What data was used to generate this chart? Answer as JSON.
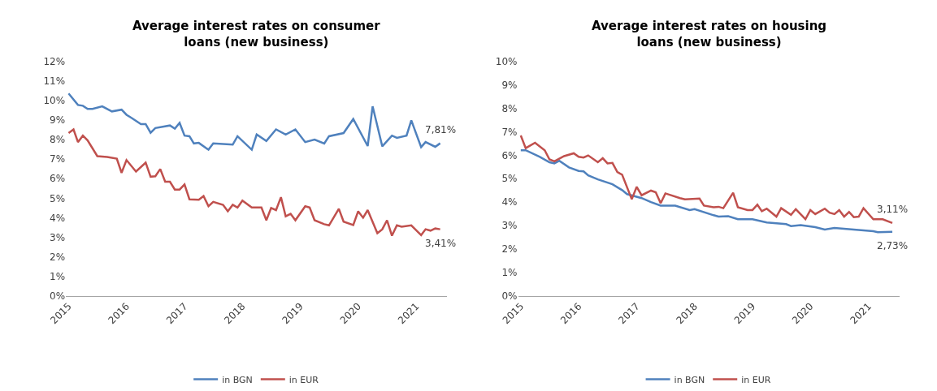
{
  "chart_data": [
    {
      "type": "line",
      "title": "Average interest rates on consumer loans (new business)",
      "xlim": [
        "2014-12-15",
        "2021-07-15"
      ],
      "xticks": [
        "2015",
        "2016",
        "2017",
        "2018",
        "2019",
        "2020",
        "2021"
      ],
      "ylim": [
        0,
        12
      ],
      "yticks": [
        {
          "value": 0,
          "label": "0%"
        },
        {
          "value": 1,
          "label": "1%"
        },
        {
          "value": 2,
          "label": "2%"
        },
        {
          "value": 3,
          "label": "3%"
        },
        {
          "value": 4,
          "label": "4%"
        },
        {
          "value": 5,
          "label": "5%"
        },
        {
          "value": 6,
          "label": "6%"
        },
        {
          "value": 7,
          "label": "7%"
        },
        {
          "value": 8,
          "label": "8%"
        },
        {
          "value": 9,
          "label": "9%"
        },
        {
          "value": 10,
          "label": "10%"
        },
        {
          "value": 11,
          "label": "11%"
        },
        {
          "value": 12,
          "label": "12%"
        }
      ],
      "legend": "bottom",
      "marker": "none",
      "line_style": "solid",
      "series": [
        {
          "name": "in BGN",
          "color": "#4f81bd",
          "x": [
            "2015-01",
            "2015-03",
            "2015-04",
            "2015-05",
            "2015-06",
            "2015-08",
            "2015-10",
            "2015-12",
            "2016-01",
            "2016-02",
            "2016-04",
            "2016-05",
            "2016-06",
            "2016-07",
            "2016-10",
            "2016-11",
            "2016-12",
            "2017-01",
            "2017-02",
            "2017-03",
            "2017-04",
            "2017-06",
            "2017-07",
            "2017-11",
            "2017-12",
            "2018-03",
            "2018-04",
            "2018-06",
            "2018-08",
            "2018-10",
            "2018-12",
            "2019-02",
            "2019-04",
            "2019-06",
            "2019-07",
            "2019-10",
            "2019-12",
            "2020-03",
            "2020-04",
            "2020-06",
            "2020-08",
            "2020-09",
            "2020-11",
            "2020-12",
            "2021-02",
            "2021-03",
            "2021-05",
            "2021-06"
          ],
          "values": [
            10.36,
            9.77,
            9.73,
            9.57,
            9.57,
            9.7,
            9.44,
            9.53,
            9.27,
            9.11,
            8.79,
            8.79,
            8.35,
            8.59,
            8.72,
            8.56,
            8.85,
            8.2,
            8.17,
            7.8,
            7.83,
            7.48,
            7.8,
            7.74,
            8.17,
            7.48,
            8.26,
            7.93,
            8.52,
            8.26,
            8.52,
            7.87,
            8.0,
            7.8,
            8.17,
            8.33,
            9.05,
            7.67,
            9.7,
            7.65,
            8.2,
            8.09,
            8.2,
            8.98,
            7.61,
            7.87,
            7.63,
            7.81
          ]
        },
        {
          "name": "in EUR",
          "color": "#c0504d",
          "x": [
            "2015-01",
            "2015-02",
            "2015-03",
            "2015-04",
            "2015-05",
            "2015-07",
            "2015-09",
            "2015-11",
            "2015-12",
            "2016-01",
            "2016-03",
            "2016-05",
            "2016-06",
            "2016-07",
            "2016-08",
            "2016-09",
            "2016-10",
            "2016-11",
            "2016-12",
            "2017-01",
            "2017-02",
            "2017-04",
            "2017-05",
            "2017-06",
            "2017-07",
            "2017-09",
            "2017-10",
            "2017-11",
            "2017-12",
            "2018-01",
            "2018-03",
            "2018-05",
            "2018-06",
            "2018-07",
            "2018-08",
            "2018-09",
            "2018-10",
            "2018-11",
            "2018-12",
            "2019-02",
            "2019-03",
            "2019-04",
            "2019-06",
            "2019-07",
            "2019-09",
            "2019-10",
            "2019-12",
            "2020-01",
            "2020-02",
            "2020-03",
            "2020-05",
            "2020-06",
            "2020-07",
            "2020-08",
            "2020-09",
            "2020-10",
            "2020-12",
            "2021-02",
            "2021-03",
            "2021-04",
            "2021-05",
            "2021-06"
          ],
          "values": [
            8.33,
            8.52,
            7.87,
            8.2,
            7.96,
            7.15,
            7.11,
            7.02,
            6.3,
            6.95,
            6.36,
            6.82,
            6.1,
            6.12,
            6.49,
            5.84,
            5.84,
            5.44,
            5.44,
            5.7,
            4.94,
            4.92,
            5.11,
            4.59,
            4.81,
            4.66,
            4.33,
            4.66,
            4.52,
            4.88,
            4.52,
            4.52,
            3.87,
            4.5,
            4.39,
            5.05,
            4.07,
            4.2,
            3.87,
            4.59,
            4.52,
            3.87,
            3.67,
            3.61,
            4.46,
            3.8,
            3.63,
            4.33,
            4.0,
            4.39,
            3.21,
            3.41,
            3.87,
            3.08,
            3.61,
            3.54,
            3.61,
            3.11,
            3.41,
            3.34,
            3.45,
            3.41
          ]
        }
      ],
      "annotations": [
        {
          "text": "7,81%",
          "x": "2021-06",
          "y": 7.81
        },
        {
          "text": "3,41%",
          "x": "2021-06",
          "y": 3.41
        }
      ]
    },
    {
      "type": "line",
      "title": "Average interest rates on housing loans (new business)",
      "xlim": [
        "2014-12-15",
        "2021-07-15"
      ],
      "xticks": [
        "2015",
        "2016",
        "2017",
        "2018",
        "2019",
        "2020",
        "2021"
      ],
      "ylim": [
        0,
        10
      ],
      "yticks": [
        {
          "value": 0,
          "label": "0%"
        },
        {
          "value": 1,
          "label": "1%"
        },
        {
          "value": 2,
          "label": "2%"
        },
        {
          "value": 3,
          "label": "3%"
        },
        {
          "value": 4,
          "label": "4%"
        },
        {
          "value": 5,
          "label": "5%"
        },
        {
          "value": 6,
          "label": "6%"
        },
        {
          "value": 7,
          "label": "7%"
        },
        {
          "value": 8,
          "label": "8%"
        },
        {
          "value": 9,
          "label": "9%"
        },
        {
          "value": 10,
          "label": "10%"
        }
      ],
      "legend": "bottom",
      "marker": "none",
      "line_style": "solid",
      "series": [
        {
          "name": "in BGN",
          "color": "#4f81bd",
          "x": [
            "2015-01",
            "2015-02",
            "2015-05",
            "2015-07",
            "2015-08",
            "2015-09",
            "2015-11",
            "2016-01",
            "2016-02",
            "2016-03",
            "2016-05",
            "2016-08",
            "2016-10",
            "2016-11",
            "2017-02",
            "2017-04",
            "2017-06",
            "2017-09",
            "2017-12",
            "2018-01",
            "2018-05",
            "2018-06",
            "2018-08",
            "2018-10",
            "2019-01",
            "2019-04",
            "2019-08",
            "2019-09",
            "2019-11",
            "2020-02",
            "2020-04",
            "2020-06",
            "2020-10",
            "2021-02",
            "2021-03",
            "2021-06"
          ],
          "values": [
            6.21,
            6.21,
            5.93,
            5.7,
            5.65,
            5.76,
            5.48,
            5.33,
            5.31,
            5.14,
            4.97,
            4.76,
            4.51,
            4.34,
            4.17,
            4.0,
            3.85,
            3.85,
            3.66,
            3.7,
            3.44,
            3.38,
            3.4,
            3.27,
            3.27,
            3.13,
            3.06,
            2.98,
            3.02,
            2.93,
            2.83,
            2.9,
            2.83,
            2.76,
            2.72,
            2.73
          ]
        },
        {
          "name": "in EUR",
          "color": "#c0504d",
          "x": [
            "2015-01",
            "2015-02",
            "2015-04",
            "2015-06",
            "2015-07",
            "2015-08",
            "2015-10",
            "2015-12",
            "2016-01",
            "2016-02",
            "2016-03",
            "2016-05",
            "2016-06",
            "2016-07",
            "2016-08",
            "2016-09",
            "2016-10",
            "2016-12",
            "2017-01",
            "2017-02",
            "2017-04",
            "2017-05",
            "2017-06",
            "2017-07",
            "2017-10",
            "2017-11",
            "2018-02",
            "2018-03",
            "2018-05",
            "2018-06",
            "2018-07",
            "2018-09",
            "2018-10",
            "2018-12",
            "2019-01",
            "2019-02",
            "2019-03",
            "2019-04",
            "2019-06",
            "2019-07",
            "2019-09",
            "2019-10",
            "2019-12",
            "2020-01",
            "2020-02",
            "2020-04",
            "2020-05",
            "2020-06",
            "2020-07",
            "2020-08",
            "2020-09",
            "2020-10",
            "2020-11",
            "2020-12",
            "2021-02",
            "2021-04",
            "2021-06"
          ],
          "values": [
            6.84,
            6.3,
            6.53,
            6.21,
            5.82,
            5.74,
            5.96,
            6.08,
            5.93,
            5.9,
            5.99,
            5.7,
            5.87,
            5.65,
            5.67,
            5.28,
            5.17,
            4.12,
            4.65,
            4.29,
            4.49,
            4.42,
            3.95,
            4.37,
            4.17,
            4.12,
            4.15,
            3.85,
            3.78,
            3.8,
            3.74,
            4.4,
            3.78,
            3.66,
            3.66,
            3.89,
            3.61,
            3.72,
            3.38,
            3.74,
            3.46,
            3.7,
            3.27,
            3.66,
            3.49,
            3.72,
            3.55,
            3.49,
            3.66,
            3.38,
            3.58,
            3.36,
            3.38,
            3.74,
            3.27,
            3.27,
            3.11
          ]
        }
      ],
      "annotations": [
        {
          "text": "3,11%",
          "x": "2021-06",
          "y": 3.11
        },
        {
          "text": "2,73%",
          "x": "2021-06",
          "y": 2.73
        }
      ]
    }
  ]
}
